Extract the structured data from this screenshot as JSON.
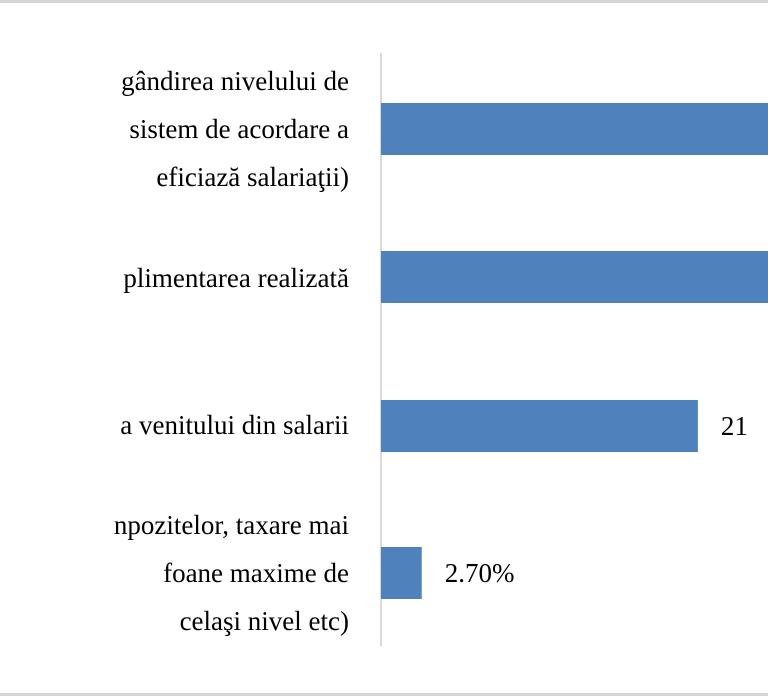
{
  "chart_data": {
    "type": "bar",
    "orientation": "horizontal",
    "bar_color": "#4F81BD",
    "categories": [
      [
        "gândirea nivelului de",
        "sistem de acordare a",
        "eficiază salariaţii)"
      ],
      [
        "plimentarea realizată"
      ],
      [
        "a venitului din salarii"
      ],
      [
        "npozitelor, taxare mai",
        "foane maxime de",
        "celaşi nivel etc)"
      ]
    ],
    "values": [
      null,
      null,
      21,
      2.7
    ],
    "value_labels": [
      "",
      "",
      "21",
      "2.70%"
    ],
    "grid": false,
    "legend": "none"
  }
}
